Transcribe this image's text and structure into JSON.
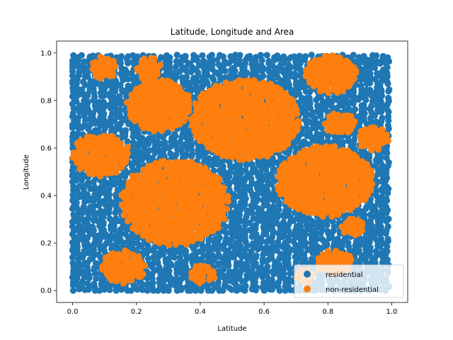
{
  "chart_data": {
    "type": "scatter",
    "title": "Latitude, Longitude and Area",
    "xlabel": "Latitude",
    "ylabel": "Longitude",
    "xlim": [
      -0.05,
      1.05
    ],
    "ylim": [
      -0.05,
      1.05
    ],
    "xticks": [
      "0.0",
      "0.2",
      "0.4",
      "0.6",
      "0.8",
      "1.0"
    ],
    "yticks": [
      "0.0",
      "0.2",
      "0.4",
      "0.6",
      "0.8",
      "1.0"
    ],
    "grid": false,
    "legend_position": "lower-right",
    "series": [
      {
        "name": "residential",
        "color": "#1f77b4",
        "region": {
          "x": [
            0.0,
            1.0
          ],
          "y": [
            0.0,
            1.0
          ]
        }
      },
      {
        "name": "non-residential",
        "color": "#ff7f0e",
        "clusters": [
          {
            "x": 0.1,
            "y": 0.94,
            "rx": 0.04,
            "ry": 0.05
          },
          {
            "x": 0.24,
            "y": 0.93,
            "rx": 0.04,
            "ry": 0.05
          },
          {
            "x": 0.27,
            "y": 0.78,
            "rx": 0.1,
            "ry": 0.11
          },
          {
            "x": 0.54,
            "y": 0.72,
            "rx": 0.17,
            "ry": 0.17
          },
          {
            "x": 0.81,
            "y": 0.91,
            "rx": 0.08,
            "ry": 0.08
          },
          {
            "x": 0.84,
            "y": 0.7,
            "rx": 0.05,
            "ry": 0.05
          },
          {
            "x": 0.94,
            "y": 0.64,
            "rx": 0.05,
            "ry": 0.05
          },
          {
            "x": 0.09,
            "y": 0.57,
            "rx": 0.09,
            "ry": 0.09
          },
          {
            "x": 0.32,
            "y": 0.37,
            "rx": 0.17,
            "ry": 0.18
          },
          {
            "x": 0.79,
            "y": 0.46,
            "rx": 0.15,
            "ry": 0.15
          },
          {
            "x": 0.88,
            "y": 0.27,
            "rx": 0.04,
            "ry": 0.04
          },
          {
            "x": 0.16,
            "y": 0.1,
            "rx": 0.07,
            "ry": 0.07
          },
          {
            "x": 0.41,
            "y": 0.07,
            "rx": 0.04,
            "ry": 0.04
          },
          {
            "x": 0.82,
            "y": 0.12,
            "rx": 0.06,
            "ry": 0.05
          },
          {
            "x": 0.73,
            "y": 0.06,
            "rx": 0.03,
            "ry": 0.03
          }
        ]
      }
    ]
  }
}
